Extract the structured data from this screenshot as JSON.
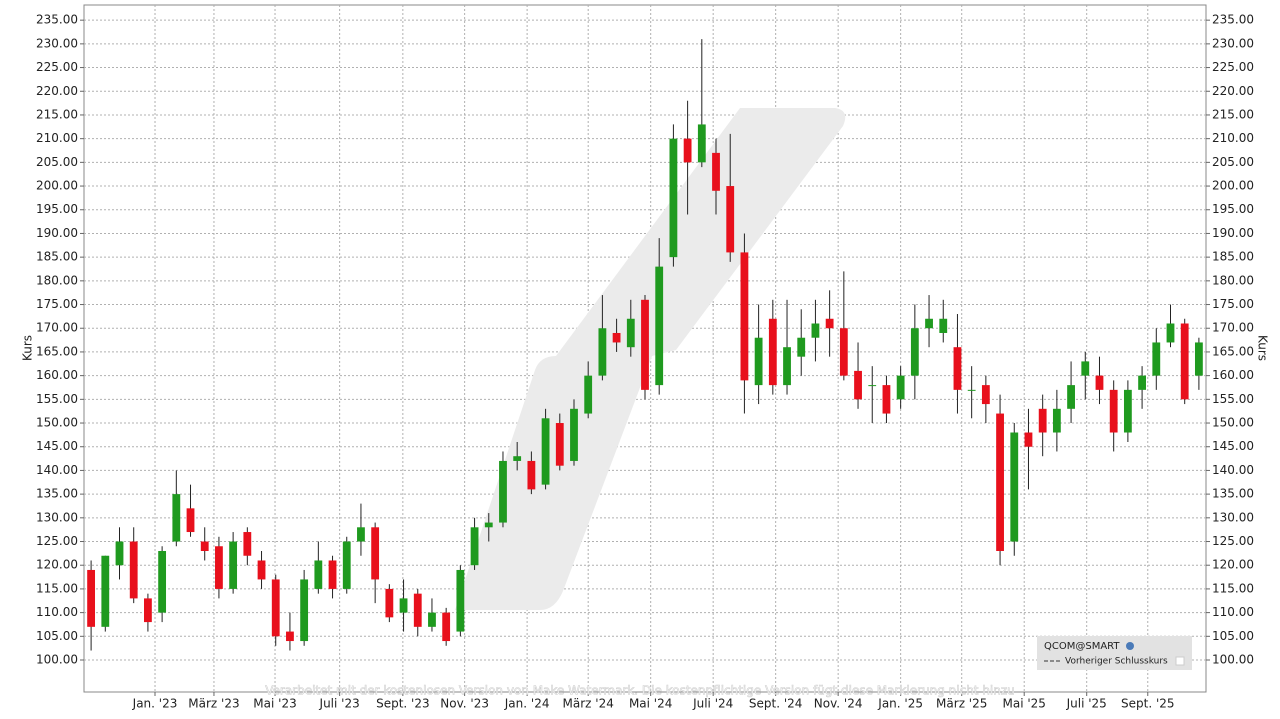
{
  "chart_data": {
    "type": "candlestick",
    "y_label": "Kurs",
    "legend": {
      "instrument": "QCOM@SMART",
      "previous_close": "Vorheriger Schlusskurs"
    },
    "watermark": "Verarbeitet mit der kostenlosen Version von Make Watermark. Die kostenpflichtige Version fügt diese Markierung nicht hinzu",
    "up_color": "#1f9a1f",
    "down_color": "#e8101c",
    "grid": true,
    "xlim": [
      0,
      79
    ],
    "ylim": [
      93.25,
      238.2
    ],
    "xticks": [
      {
        "value": 5.0,
        "label": "Jan. '23"
      },
      {
        "value": 9.15,
        "label": "März '23"
      },
      {
        "value": 13.45,
        "label": "Mai '23"
      },
      {
        "value": 18.0,
        "label": "Juli '23"
      },
      {
        "value": 22.45,
        "label": "Sept. '23"
      },
      {
        "value": 26.8,
        "label": "Nov. '23"
      },
      {
        "value": 31.2,
        "label": "Jan. '24"
      },
      {
        "value": 35.5,
        "label": "März '24"
      },
      {
        "value": 39.9,
        "label": "Mai '24"
      },
      {
        "value": 44.3,
        "label": "Juli '24"
      },
      {
        "value": 48.7,
        "label": "Sept. '24"
      },
      {
        "value": 53.1,
        "label": "Nov. '24"
      },
      {
        "value": 57.5,
        "label": "Jan. '25"
      },
      {
        "value": 61.8,
        "label": "März '25"
      },
      {
        "value": 66.2,
        "label": "Mai '25"
      },
      {
        "value": 70.6,
        "label": "Juli '25"
      },
      {
        "value": 74.9,
        "label": "Sept. '25"
      }
    ],
    "yticks": [
      {
        "value": 100,
        "label": "100.00"
      },
      {
        "value": 105,
        "label": "105.00"
      },
      {
        "value": 110,
        "label": "110.00"
      },
      {
        "value": 115,
        "label": "115.00"
      },
      {
        "value": 120,
        "label": "120.00"
      },
      {
        "value": 125,
        "label": "125.00"
      },
      {
        "value": 130,
        "label": "130.00"
      },
      {
        "value": 135,
        "label": "135.00"
      },
      {
        "value": 140,
        "label": "140.00"
      },
      {
        "value": 145,
        "label": "145.00"
      },
      {
        "value": 150,
        "label": "150.00"
      },
      {
        "value": 155,
        "label": "155.00"
      },
      {
        "value": 160,
        "label": "160.00"
      },
      {
        "value": 165,
        "label": "165.00"
      },
      {
        "value": 170,
        "label": "170.00"
      },
      {
        "value": 175,
        "label": "175.00"
      },
      {
        "value": 180,
        "label": "180.00"
      },
      {
        "value": 185,
        "label": "185.00"
      },
      {
        "value": 190,
        "label": "190.00"
      },
      {
        "value": 195,
        "label": "195.00"
      },
      {
        "value": 200,
        "label": "200.00"
      },
      {
        "value": 205,
        "label": "205.00"
      },
      {
        "value": 210,
        "label": "210.00"
      },
      {
        "value": 215,
        "label": "215.00"
      },
      {
        "value": 220,
        "label": "220.00"
      },
      {
        "value": 225,
        "label": "225.00"
      },
      {
        "value": 230,
        "label": "230.00"
      },
      {
        "value": 235,
        "label": "235.00"
      }
    ],
    "open": [
      119,
      107,
      120,
      125,
      113,
      110,
      125,
      132,
      125,
      124,
      115,
      127,
      121,
      117,
      106,
      104,
      115,
      121,
      115,
      125,
      128,
      115,
      110,
      114,
      107,
      110,
      106,
      120,
      128,
      129,
      142,
      142,
      137,
      150,
      142,
      152,
      160,
      169,
      166,
      176,
      158,
      185,
      210,
      205,
      207,
      200,
      186,
      158,
      172,
      158,
      164,
      168,
      172,
      170,
      161,
      158,
      158,
      155,
      160,
      170,
      169,
      166,
      157,
      158,
      152,
      125,
      148,
      153,
      148,
      153,
      160,
      160,
      157,
      148,
      157,
      160,
      167,
      171,
      160
    ],
    "high": [
      121,
      122,
      128,
      128,
      114,
      124,
      140,
      137,
      128,
      126,
      127,
      128,
      123,
      118,
      110,
      119,
      125,
      122,
      126,
      133,
      129,
      116,
      117,
      115,
      113,
      111,
      120,
      130,
      131,
      144,
      146,
      144,
      153,
      152,
      155,
      163,
      177,
      172,
      176,
      177,
      189,
      213,
      218,
      231,
      210,
      211,
      190,
      175,
      176,
      176,
      174,
      176,
      178,
      182,
      167,
      162,
      160,
      162,
      175,
      177,
      176,
      173,
      162,
      160,
      156,
      150,
      153,
      156,
      157,
      163,
      165,
      164,
      159,
      159,
      162,
      170,
      175,
      172,
      168
    ],
    "low": [
      102,
      106,
      117,
      112,
      106,
      108,
      124,
      126,
      121,
      113,
      114,
      120,
      115,
      103,
      102,
      103,
      114,
      113,
      114,
      122,
      112,
      108,
      106,
      105,
      106,
      103,
      105,
      119,
      125,
      128,
      140,
      135,
      136,
      140,
      141,
      151,
      159,
      165,
      164,
      155,
      156,
      183,
      194,
      204,
      194,
      184,
      152,
      154,
      156,
      156,
      160,
      163,
      164,
      159,
      153,
      150,
      150,
      153,
      155,
      166,
      167,
      152,
      151,
      150,
      120,
      122,
      136,
      143,
      144,
      150,
      155,
      154,
      144,
      146,
      153,
      157,
      166,
      154,
      157
    ],
    "close": [
      107,
      122,
      125,
      113,
      108,
      123,
      135,
      127,
      123,
      115,
      125,
      122,
      117,
      105,
      104,
      117,
      121,
      115,
      125,
      128,
      117,
      109,
      113,
      107,
      110,
      104,
      119,
      128,
      129,
      142,
      143,
      136,
      151,
      141,
      153,
      160,
      170,
      167,
      172,
      157,
      183,
      210,
      205,
      213,
      199,
      186,
      159,
      168,
      158,
      166,
      168,
      171,
      170,
      160,
      155,
      158,
      152,
      160,
      170,
      172,
      172,
      157,
      157,
      154,
      123,
      148,
      145,
      148,
      153,
      158,
      163,
      157,
      148,
      157,
      160,
      167,
      171,
      155,
      167
    ]
  }
}
